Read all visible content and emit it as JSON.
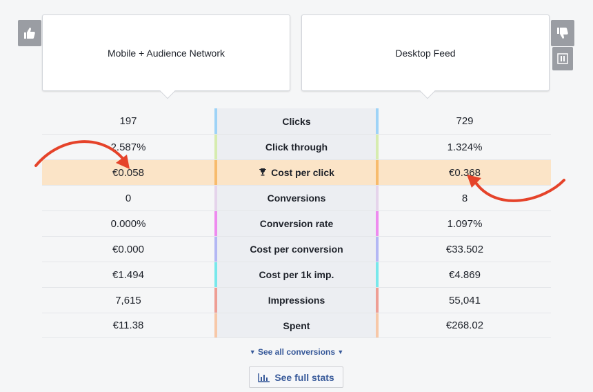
{
  "left_placement": "Mobile + Audience Network",
  "right_placement": "Desktop Feed",
  "metrics": [
    {
      "label": "Clicks",
      "left": "197",
      "right": "729",
      "color": "#9ed3f7"
    },
    {
      "label": "Click through",
      "left": "2.587%",
      "right": "1.324%",
      "color": "#d6ecaf"
    },
    {
      "label": "Cost per click",
      "left": "€0.058",
      "right": "€0.368",
      "color": "#f7bb6c"
    },
    {
      "label": "Conversions",
      "left": "0",
      "right": "8",
      "color": "#e5d4eb"
    },
    {
      "label": "Conversion rate",
      "left": "0.000%",
      "right": "1.097%",
      "color": "#ee8bef"
    },
    {
      "label": "Cost per conversion",
      "left": "€0.000",
      "right": "€33.502",
      "color": "#b3b7f4"
    },
    {
      "label": "Cost per 1k imp.",
      "left": "€1.494",
      "right": "€4.869",
      "color": "#78e8eb"
    },
    {
      "label": "Impressions",
      "left": "7,615",
      "right": "55,041",
      "color": "#ee9e94"
    },
    {
      "label": "Spent",
      "left": "€11.38",
      "right": "€268.02",
      "color": "#f7c8a8"
    }
  ],
  "highlight_index": 2,
  "see_all_conversions": "See all conversions",
  "see_full_stats": "See full stats",
  "accent_color": "#365899",
  "arrow_color": "#e5432a",
  "icons": [
    "thumbs-up-icon",
    "thumbs-down-icon",
    "pause-icon",
    "trophy-icon",
    "bar-chart-icon",
    "triangle-down-icon"
  ]
}
